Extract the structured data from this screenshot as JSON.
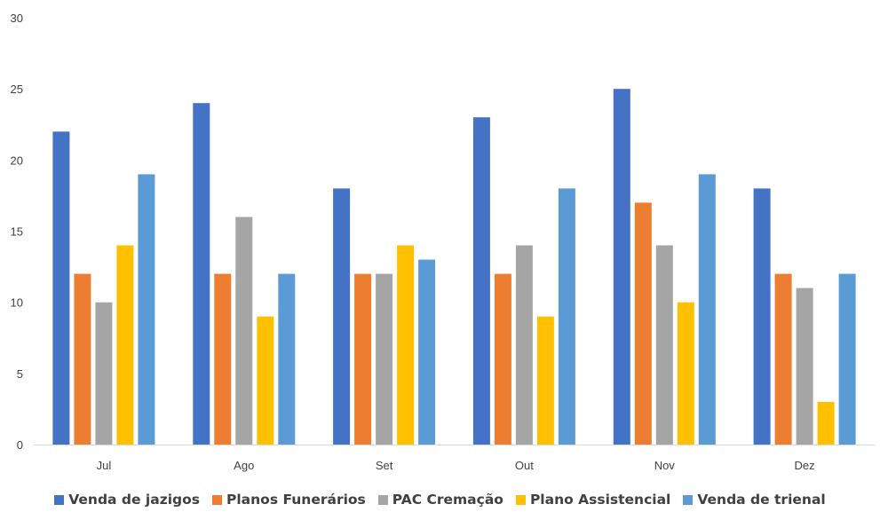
{
  "chart_data": {
    "type": "bar",
    "categories": [
      "Jul",
      "Ago",
      "Set",
      "Out",
      "Nov",
      "Dez"
    ],
    "series": [
      {
        "name": "Venda de jazigos",
        "color": "#4472C4",
        "values": [
          22,
          24,
          18,
          23,
          25,
          18
        ]
      },
      {
        "name": "Planos Funerários",
        "color": "#ED7D31",
        "values": [
          12,
          12,
          12,
          12,
          17,
          12
        ]
      },
      {
        "name": "PAC Cremação",
        "color": "#A5A5A5",
        "values": [
          10,
          16,
          12,
          14,
          14,
          11
        ]
      },
      {
        "name": "Plano Assistencial",
        "color": "#FFC000",
        "values": [
          14,
          9,
          14,
          9,
          10,
          3
        ]
      },
      {
        "name": "Venda de trienal",
        "color": "#5B9BD5",
        "values": [
          19,
          12,
          13,
          18,
          19,
          12
        ]
      }
    ],
    "yticks": [
      "0",
      "5",
      "10",
      "15",
      "20",
      "25",
      "30"
    ],
    "ylim": [
      0,
      30
    ],
    "grid": false,
    "legend_position": "bottom",
    "axis_color": "#D9D9D9",
    "text_color": "#404040"
  }
}
